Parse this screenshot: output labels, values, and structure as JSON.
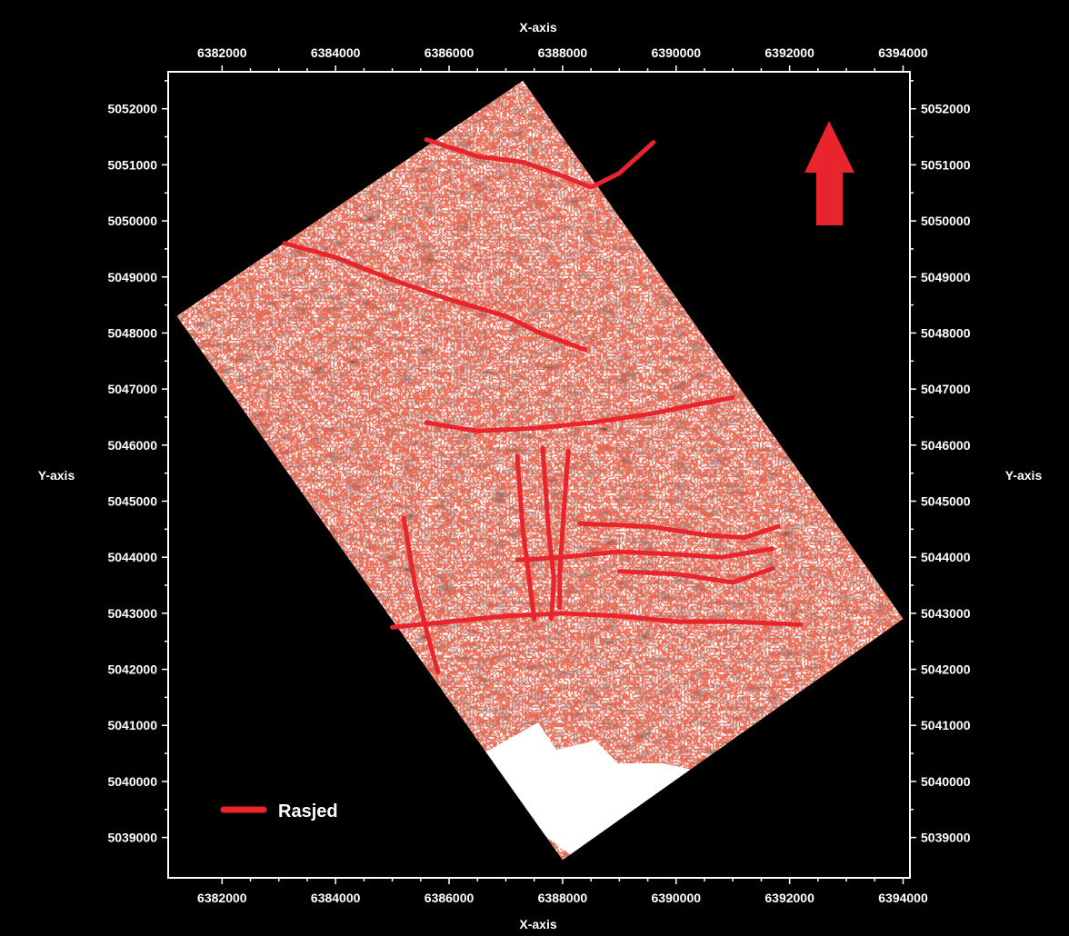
{
  "axes": {
    "x_title_top": "X-axis",
    "x_title_bottom": "X-axis",
    "y_title_left": "Y-axis",
    "y_title_right": "Y-axis"
  },
  "chart_data": {
    "type": "map",
    "x_ticks": [
      6382000,
      6384000,
      6386000,
      6388000,
      6390000,
      6392000,
      6394000
    ],
    "y_ticks": [
      5052000,
      5051000,
      5050000,
      5049000,
      5048000,
      5047000,
      5046000,
      5045000,
      5044000,
      5043000,
      5042000,
      5041000,
      5040000,
      5039000
    ],
    "xlim": [
      6381050,
      6394120
    ],
    "ylim": [
      5038280,
      5052660
    ],
    "survey_outline": [
      [
        6387300,
        5052500
      ],
      [
        6394000,
        5042900
      ],
      [
        6388000,
        5038600
      ],
      [
        6381200,
        5048300
      ]
    ],
    "faults": [
      {
        "points": [
          [
            6385600,
            5051450
          ],
          [
            6386500,
            5051150
          ],
          [
            6387300,
            5051050
          ],
          [
            6388000,
            5050800
          ],
          [
            6388500,
            5050600
          ],
          [
            6389000,
            5050850
          ],
          [
            6389600,
            5051400
          ]
        ]
      },
      {
        "points": [
          [
            6383100,
            5049600
          ],
          [
            6384000,
            5049350
          ],
          [
            6385000,
            5048950
          ],
          [
            6386000,
            5048600
          ],
          [
            6387000,
            5048300
          ],
          [
            6387600,
            5048000
          ],
          [
            6388400,
            5047700
          ]
        ]
      },
      {
        "points": [
          [
            6385600,
            5046400
          ],
          [
            6386500,
            5046250
          ],
          [
            6387500,
            5046300
          ],
          [
            6388500,
            5046400
          ],
          [
            6389500,
            5046550
          ],
          [
            6390500,
            5046750
          ],
          [
            6391000,
            5046850
          ]
        ]
      },
      {
        "points": [
          [
            6387200,
            5045800
          ],
          [
            6387300,
            5044500
          ],
          [
            6387400,
            5043700
          ],
          [
            6387500,
            5042900
          ]
        ]
      },
      {
        "points": [
          [
            6387650,
            5045950
          ],
          [
            6387750,
            5044500
          ],
          [
            6387850,
            5043600
          ],
          [
            6387800,
            5042900
          ]
        ]
      },
      {
        "points": [
          [
            6388100,
            5045900
          ],
          [
            6388000,
            5044500
          ],
          [
            6387950,
            5043700
          ],
          [
            6387950,
            5043100
          ]
        ]
      },
      {
        "points": [
          [
            6385200,
            5044700
          ],
          [
            6385400,
            5043500
          ],
          [
            6385600,
            5042700
          ],
          [
            6385800,
            5041950
          ]
        ]
      },
      {
        "points": [
          [
            6385000,
            5042750
          ],
          [
            6386000,
            5042850
          ],
          [
            6387000,
            5042950
          ],
          [
            6388000,
            5043000
          ],
          [
            6389000,
            5042950
          ],
          [
            6390000,
            5042850
          ],
          [
            6391000,
            5042850
          ],
          [
            6392200,
            5042800
          ]
        ]
      },
      {
        "points": [
          [
            6388300,
            5044600
          ],
          [
            6389500,
            5044550
          ],
          [
            6390500,
            5044400
          ],
          [
            6391200,
            5044350
          ],
          [
            6391800,
            5044550
          ]
        ]
      },
      {
        "points": [
          [
            6387200,
            5043950
          ],
          [
            6388000,
            5044000
          ],
          [
            6389000,
            5044100
          ],
          [
            6390000,
            5044050
          ],
          [
            6390800,
            5044000
          ],
          [
            6391700,
            5044150
          ]
        ]
      },
      {
        "points": [
          [
            6389000,
            5043750
          ],
          [
            6390000,
            5043700
          ],
          [
            6391000,
            5043550
          ],
          [
            6391700,
            5043800
          ]
        ]
      }
    ]
  },
  "north_arrow": {
    "color": "#e8242c"
  },
  "legend": {
    "label": "Rasjed",
    "color": "#e8242c"
  }
}
